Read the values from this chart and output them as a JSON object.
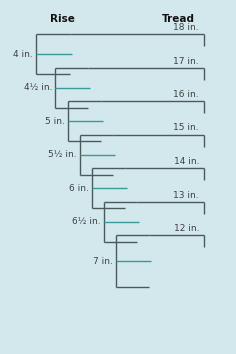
{
  "background_color": "#d3e8ed",
  "title_rise": "Rise",
  "title_tread": "Tread",
  "rise_labels": [
    "4 in.",
    "4½ in.",
    "5 in.",
    "5½ in.",
    "6 in.",
    "6½ in.",
    "7 in."
  ],
  "tread_labels": [
    "18 in.",
    "17 in.",
    "16 in.",
    "15 in.",
    "14 in.",
    "13 in.",
    "12 in."
  ],
  "line_color": "#3a9a9a",
  "bracket_color": "#4a5a5a",
  "text_color": "#404040",
  "title_color": "#111111",
  "fig_width": 2.36,
  "fig_height": 3.54,
  "dpi": 100
}
